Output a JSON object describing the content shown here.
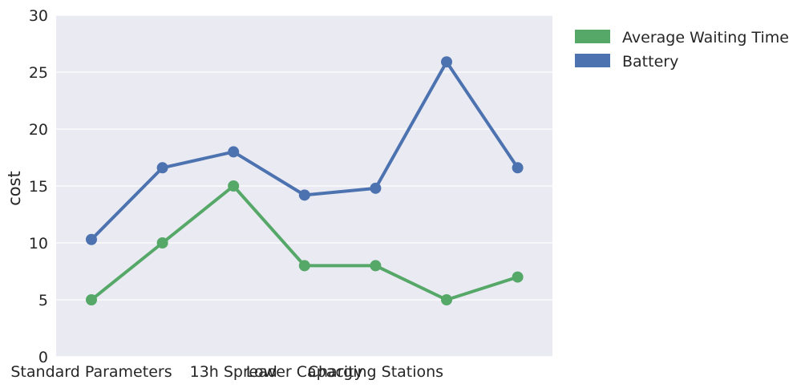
{
  "chart_data": {
    "type": "line",
    "ylabel": "cost",
    "xlabel": "",
    "ylim": [
      0,
      30
    ],
    "yticks": [
      0,
      5,
      10,
      15,
      20,
      25,
      30
    ],
    "grid": true,
    "legend_position": "outside-top-right",
    "categories": [
      "Standard Parameters",
      "",
      "13h Spread",
      "Lower Capacity",
      "Charging Stations",
      "",
      ""
    ],
    "x_tick_labels": [
      "Standard Parameters",
      "13h Spread",
      "Lower Capacity",
      "Charging Stations"
    ],
    "series": [
      {
        "name": "Average Waiting Time",
        "color": "#55a868",
        "values": [
          5,
          10,
          15,
          8,
          8,
          5,
          7
        ]
      },
      {
        "name": "Battery",
        "color": "#4c72b0",
        "values": [
          10.3,
          16.6,
          18.0,
          14.2,
          14.8,
          25.9,
          16.6
        ]
      }
    ],
    "background_color": "#eaeaf2"
  }
}
